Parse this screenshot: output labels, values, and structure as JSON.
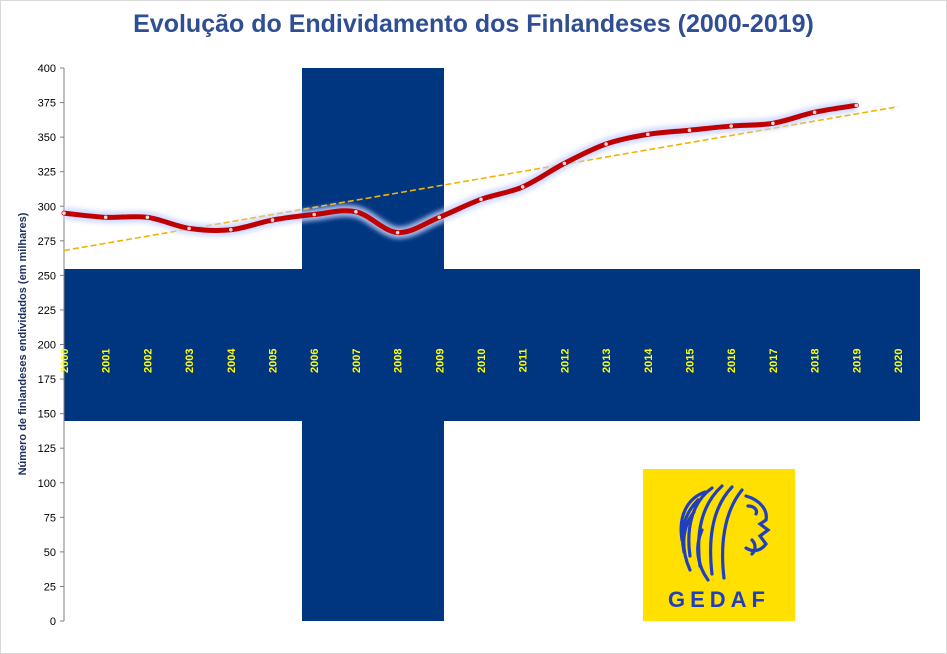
{
  "chart_data": {
    "type": "line",
    "title": "Evolução do Endividamento dos Finlandeses (2000-2019)",
    "ylabel": "Número de finlandeses endividados (em milhares)",
    "xlabel": "",
    "categories": [
      "2000",
      "2001",
      "2002",
      "2003",
      "2004",
      "2005",
      "2006",
      "2007",
      "2008",
      "2009",
      "2010",
      "2011",
      "2012",
      "2013",
      "2014",
      "2015",
      "2016",
      "2017",
      "2018",
      "2019",
      "2020"
    ],
    "x": [
      2000,
      2001,
      2002,
      2003,
      2004,
      2005,
      2006,
      2007,
      2008,
      2009,
      2010,
      2011,
      2012,
      2013,
      2014,
      2015,
      2016,
      2017,
      2018,
      2019
    ],
    "series": [
      {
        "name": "",
        "values": [
          295,
          292,
          292,
          284,
          283,
          290,
          294,
          296,
          281,
          292,
          305,
          314,
          331,
          345,
          352,
          355,
          358,
          360,
          368,
          373
        ],
        "color": "#c00000"
      }
    ],
    "trendline": {
      "style": "dashed",
      "color": "#f0b400",
      "x": [
        2000,
        2020
      ],
      "values": [
        268,
        372
      ]
    },
    "xlim": [
      2000,
      2020
    ],
    "ylim": [
      0,
      400
    ],
    "yticks": [
      0,
      25,
      50,
      75,
      100,
      125,
      150,
      175,
      200,
      225,
      250,
      275,
      300,
      325,
      350,
      375,
      400
    ],
    "grid": false,
    "legend": "none",
    "background": {
      "description_colors": {
        "flag_blue": "#003580",
        "flag_white": "#ffffff"
      }
    }
  },
  "logo": {
    "text": "GEDAF",
    "icon": "lion-head-icon",
    "background_color": "#ffe000",
    "foreground_color": "#1f3fbf"
  }
}
